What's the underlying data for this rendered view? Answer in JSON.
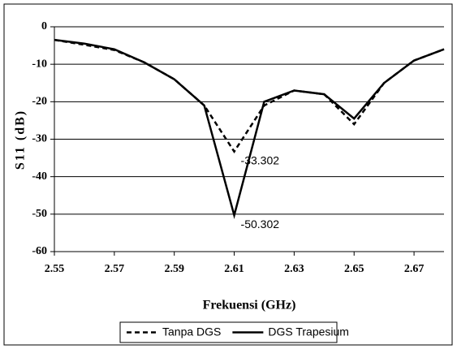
{
  "chart_data": {
    "type": "line",
    "x": [
      2.55,
      2.56,
      2.57,
      2.58,
      2.59,
      2.6,
      2.61,
      2.62,
      2.63,
      2.64,
      2.65,
      2.66,
      2.67,
      2.68
    ],
    "series": [
      {
        "name": "Tanpa DGS",
        "color": "#000000",
        "dash": true,
        "values": [
          -3.5,
          -4.8,
          -6.2,
          -9.5,
          -14,
          -21,
          -33.302,
          -21,
          -17,
          -18,
          -26,
          -15,
          -9,
          -6
        ]
      },
      {
        "name": "DGS Trapesium",
        "color": "#000000",
        "dash": false,
        "values": [
          -3.5,
          -4.5,
          -6,
          -9.5,
          -14,
          -21,
          -50.302,
          -20,
          -17,
          -18,
          -24.5,
          -15,
          -9,
          -6
        ]
      }
    ],
    "annotated": [
      [
        0,
        6
      ],
      [
        1,
        6
      ]
    ],
    "xlabel": "Frekuensi (GHz)",
    "ylabel": "S11 (dB)",
    "xlim": [
      2.55,
      2.68
    ],
    "xticks": [
      2.55,
      2.57,
      2.59,
      2.61,
      2.63,
      2.65,
      2.67
    ],
    "ylim": [
      -60,
      0
    ],
    "yticks": [
      0,
      -10,
      -20,
      -30,
      -40,
      -50,
      -60
    ],
    "grid": true,
    "legend": "bottom"
  }
}
